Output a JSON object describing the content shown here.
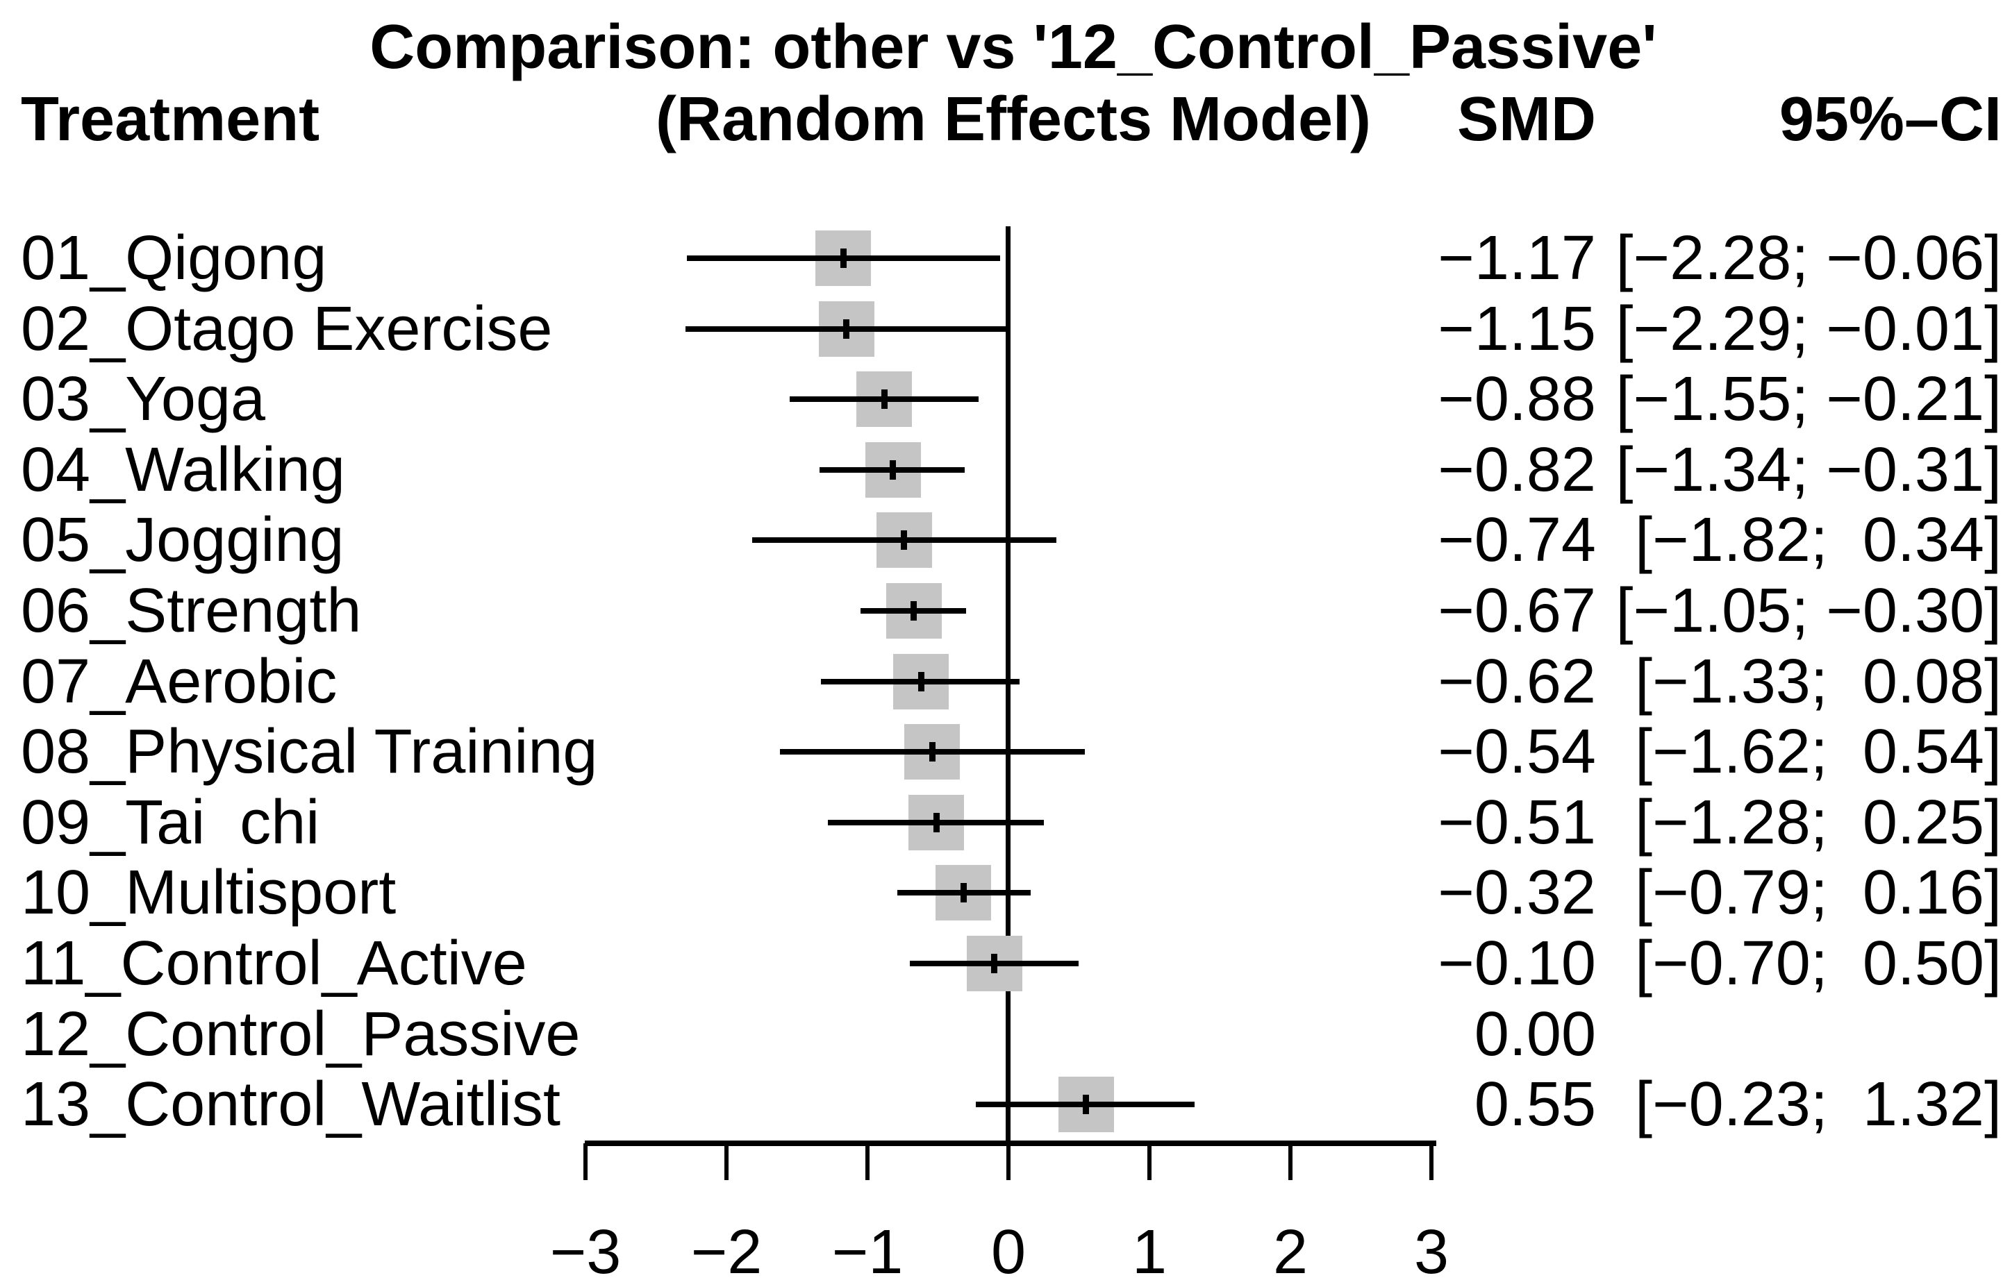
{
  "chart_data": {
    "type": "forest",
    "title": "Comparison: other vs '12_Control_Passive'",
    "subtitle": "(Random Effects Model)",
    "columns": {
      "treatment": "Treatment",
      "smd": "SMD",
      "ci": "95%–CI"
    },
    "xlabel": "",
    "xlim": [
      -3,
      3
    ],
    "grid": false,
    "reference_value": 0,
    "marker_color": "#c5c5c5",
    "line_color": "#000000",
    "xticks": [
      {
        "value": -3,
        "label": "−3"
      },
      {
        "value": -2,
        "label": "−2"
      },
      {
        "value": -1,
        "label": "−1"
      },
      {
        "value": 0,
        "label": "0"
      },
      {
        "value": 1,
        "label": "1"
      },
      {
        "value": 2,
        "label": "2"
      },
      {
        "value": 3,
        "label": "3"
      }
    ],
    "rows": [
      {
        "treatment": "01_Qigong",
        "smd": -1.17,
        "lower": -2.28,
        "upper": -0.06,
        "smd_label": "−1.17",
        "ci_label": "[−2.28; −0.06]"
      },
      {
        "treatment": "02_Otago Exercise",
        "smd": -1.15,
        "lower": -2.29,
        "upper": -0.01,
        "smd_label": "−1.15",
        "ci_label": "[−2.29; −0.01]"
      },
      {
        "treatment": "03_Yoga",
        "smd": -0.88,
        "lower": -1.55,
        "upper": -0.21,
        "smd_label": "−0.88",
        "ci_label": "[−1.55; −0.21]"
      },
      {
        "treatment": "04_Walking",
        "smd": -0.82,
        "lower": -1.34,
        "upper": -0.31,
        "smd_label": "−0.82",
        "ci_label": "[−1.34; −0.31]"
      },
      {
        "treatment": "05_Jogging",
        "smd": -0.74,
        "lower": -1.82,
        "upper": 0.34,
        "smd_label": "−0.74",
        "ci_label": "[−1.82;  0.34]"
      },
      {
        "treatment": "06_Strength",
        "smd": -0.67,
        "lower": -1.05,
        "upper": -0.3,
        "smd_label": "−0.67",
        "ci_label": "[−1.05; −0.30]"
      },
      {
        "treatment": "07_Aerobic",
        "smd": -0.62,
        "lower": -1.33,
        "upper": 0.08,
        "smd_label": "−0.62",
        "ci_label": "[−1.33;  0.08]"
      },
      {
        "treatment": "08_Physical Training",
        "smd": -0.54,
        "lower": -1.62,
        "upper": 0.54,
        "smd_label": "−0.54",
        "ci_label": "[−1.62;  0.54]"
      },
      {
        "treatment": "09_Tai  chi",
        "smd": -0.51,
        "lower": -1.28,
        "upper": 0.25,
        "smd_label": "−0.51",
        "ci_label": "[−1.28;  0.25]"
      },
      {
        "treatment": "10_Multisport",
        "smd": -0.32,
        "lower": -0.79,
        "upper": 0.16,
        "smd_label": "−0.32",
        "ci_label": "[−0.79;  0.16]"
      },
      {
        "treatment": "11_Control_Active",
        "smd": -0.1,
        "lower": -0.7,
        "upper": 0.5,
        "smd_label": "−0.10",
        "ci_label": "[−0.70;  0.50]"
      },
      {
        "treatment": "12_Control_Passive",
        "smd": 0.0,
        "lower": null,
        "upper": null,
        "smd_label": "0.00",
        "ci_label": ""
      },
      {
        "treatment": "13_Control_Waitlist",
        "smd": 0.55,
        "lower": -0.23,
        "upper": 1.32,
        "smd_label": "0.55",
        "ci_label": "[−0.23;  1.32]"
      }
    ]
  }
}
